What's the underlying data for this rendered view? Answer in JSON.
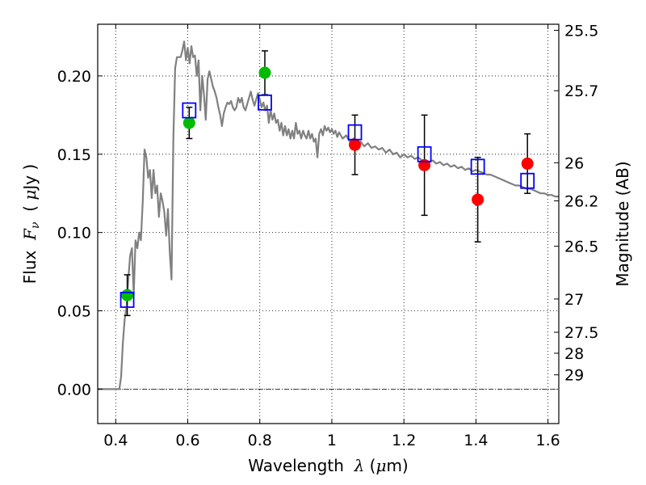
{
  "chart_data": {
    "type": "scatter",
    "xlabel": {
      "prefix": "Wavelength  ",
      "symbol": "λ",
      "suffix": " (",
      "unit_symbol": "μ",
      "unit_rest": "m)"
    },
    "ylabel": {
      "prefix": "Flux  ",
      "symbol": "F",
      "subscript": "ν",
      "mid": "  ( ",
      "unit_symbol": "μ",
      "unit_rest": "Jy )"
    },
    "y2label": "Magnitude (AB)",
    "xlim": [
      0.35,
      1.63
    ],
    "ylim": [
      -0.022,
      0.233
    ],
    "grid": true,
    "x_ticks": [
      {
        "value": 0.4,
        "label": "0.4"
      },
      {
        "value": 0.6,
        "label": "0.6"
      },
      {
        "value": 0.8,
        "label": "0.8"
      },
      {
        "value": 1.0,
        "label": "1"
      },
      {
        "value": 1.2,
        "label": "1.2"
      },
      {
        "value": 1.4,
        "label": "1.4"
      },
      {
        "value": 1.6,
        "label": "1.6"
      }
    ],
    "y_ticks": [
      {
        "value": 0.0,
        "label": "0.00"
      },
      {
        "value": 0.05,
        "label": "0.05"
      },
      {
        "value": 0.1,
        "label": "0.10"
      },
      {
        "value": 0.15,
        "label": "0.15"
      },
      {
        "value": 0.2,
        "label": "0.20"
      }
    ],
    "mag_ticks": [
      {
        "mag": 25.5,
        "label": "25.5"
      },
      {
        "mag": 25.7,
        "label": "25.7"
      },
      {
        "mag": 26.0,
        "label": "26"
      },
      {
        "mag": 26.2,
        "label": "26.2"
      },
      {
        "mag": 26.5,
        "label": "26.5"
      },
      {
        "mag": 27.0,
        "label": "27"
      },
      {
        "mag": 27.5,
        "label": "27.5"
      },
      {
        "mag": 28.0,
        "label": "28"
      },
      {
        "mag": 29.0,
        "label": "29"
      }
    ],
    "model_sed": {
      "color": "#808080",
      "points": [
        [
          0.35,
          0.0
        ],
        [
          0.41,
          0.0
        ],
        [
          0.415,
          0.008
        ],
        [
          0.42,
          0.03
        ],
        [
          0.425,
          0.045
        ],
        [
          0.43,
          0.052
        ],
        [
          0.435,
          0.07
        ],
        [
          0.44,
          0.085
        ],
        [
          0.445,
          0.09
        ],
        [
          0.45,
          0.06
        ],
        [
          0.455,
          0.095
        ],
        [
          0.46,
          0.09
        ],
        [
          0.465,
          0.1
        ],
        [
          0.47,
          0.095
        ],
        [
          0.475,
          0.12
        ],
        [
          0.48,
          0.153
        ],
        [
          0.485,
          0.148
        ],
        [
          0.49,
          0.135
        ],
        [
          0.495,
          0.14
        ],
        [
          0.5,
          0.122
        ],
        [
          0.505,
          0.14
        ],
        [
          0.51,
          0.125
        ],
        [
          0.515,
          0.13
        ],
        [
          0.52,
          0.11
        ],
        [
          0.525,
          0.125
        ],
        [
          0.53,
          0.12
        ],
        [
          0.535,
          0.113
        ],
        [
          0.54,
          0.098
        ],
        [
          0.545,
          0.115
        ],
        [
          0.55,
          0.088
        ],
        [
          0.555,
          0.07
        ],
        [
          0.56,
          0.16
        ],
        [
          0.565,
          0.205
        ],
        [
          0.57,
          0.212
        ],
        [
          0.575,
          0.212
        ],
        [
          0.58,
          0.212
        ],
        [
          0.585,
          0.216
        ],
        [
          0.59,
          0.222
        ],
        [
          0.595,
          0.21
        ],
        [
          0.6,
          0.218
        ],
        [
          0.605,
          0.208
        ],
        [
          0.61,
          0.219
        ],
        [
          0.615,
          0.212
        ],
        [
          0.62,
          0.213
        ],
        [
          0.625,
          0.2
        ],
        [
          0.63,
          0.21
        ],
        [
          0.635,
          0.178
        ],
        [
          0.64,
          0.2
        ],
        [
          0.645,
          0.188
        ],
        [
          0.65,
          0.172
        ],
        [
          0.655,
          0.198
        ],
        [
          0.66,
          0.203
        ],
        [
          0.665,
          0.198
        ],
        [
          0.67,
          0.193
        ],
        [
          0.675,
          0.19
        ],
        [
          0.68,
          0.186
        ],
        [
          0.685,
          0.18
        ],
        [
          0.69,
          0.175
        ],
        [
          0.695,
          0.168
        ],
        [
          0.7,
          0.176
        ],
        [
          0.705,
          0.18
        ],
        [
          0.71,
          0.183
        ],
        [
          0.715,
          0.182
        ],
        [
          0.72,
          0.184
        ],
        [
          0.725,
          0.18
        ],
        [
          0.73,
          0.178
        ],
        [
          0.735,
          0.18
        ],
        [
          0.74,
          0.186
        ],
        [
          0.745,
          0.183
        ],
        [
          0.75,
          0.186
        ],
        [
          0.755,
          0.18
        ],
        [
          0.76,
          0.178
        ],
        [
          0.765,
          0.182
        ],
        [
          0.77,
          0.186
        ],
        [
          0.775,
          0.19
        ],
        [
          0.78,
          0.185
        ],
        [
          0.785,
          0.181
        ],
        [
          0.79,
          0.185
        ],
        [
          0.795,
          0.189
        ],
        [
          0.8,
          0.185
        ],
        [
          0.805,
          0.18
        ],
        [
          0.81,
          0.183
        ],
        [
          0.815,
          0.178
        ],
        [
          0.82,
          0.181
        ],
        [
          0.825,
          0.17
        ],
        [
          0.83,
          0.178
        ],
        [
          0.835,
          0.172
        ],
        [
          0.84,
          0.176
        ],
        [
          0.845,
          0.17
        ],
        [
          0.85,
          0.172
        ],
        [
          0.855,
          0.165
        ],
        [
          0.86,
          0.17
        ],
        [
          0.865,
          0.162
        ],
        [
          0.87,
          0.168
        ],
        [
          0.875,
          0.162
        ],
        [
          0.88,
          0.166
        ],
        [
          0.885,
          0.16
        ],
        [
          0.89,
          0.165
        ],
        [
          0.895,
          0.16
        ],
        [
          0.9,
          0.17
        ],
        [
          0.905,
          0.163
        ],
        [
          0.91,
          0.165
        ],
        [
          0.915,
          0.16
        ],
        [
          0.92,
          0.165
        ],
        [
          0.925,
          0.162
        ],
        [
          0.93,
          0.16
        ],
        [
          0.935,
          0.165
        ],
        [
          0.94,
          0.16
        ],
        [
          0.945,
          0.163
        ],
        [
          0.95,
          0.158
        ],
        [
          0.955,
          0.16
        ],
        [
          0.96,
          0.148
        ],
        [
          0.965,
          0.163
        ],
        [
          0.97,
          0.166
        ],
        [
          0.975,
          0.162
        ],
        [
          0.98,
          0.168
        ],
        [
          0.985,
          0.165
        ],
        [
          0.99,
          0.167
        ],
        [
          0.995,
          0.164
        ],
        [
          1.0,
          0.166
        ],
        [
          1.005,
          0.163
        ],
        [
          1.01,
          0.165
        ],
        [
          1.015,
          0.161
        ],
        [
          1.02,
          0.164
        ],
        [
          1.025,
          0.162
        ],
        [
          1.03,
          0.16
        ],
        [
          1.04,
          0.162
        ],
        [
          1.05,
          0.158
        ],
        [
          1.06,
          0.16
        ],
        [
          1.07,
          0.156
        ],
        [
          1.08,
          0.158
        ],
        [
          1.09,
          0.155
        ],
        [
          1.1,
          0.157
        ],
        [
          1.11,
          0.154
        ],
        [
          1.12,
          0.155
        ],
        [
          1.13,
          0.153
        ],
        [
          1.14,
          0.154
        ],
        [
          1.15,
          0.151
        ],
        [
          1.16,
          0.153
        ],
        [
          1.17,
          0.15
        ],
        [
          1.18,
          0.151
        ],
        [
          1.19,
          0.148
        ],
        [
          1.2,
          0.15
        ],
        [
          1.21,
          0.148
        ],
        [
          1.22,
          0.149
        ],
        [
          1.23,
          0.147
        ],
        [
          1.24,
          0.148
        ],
        [
          1.25,
          0.146
        ],
        [
          1.26,
          0.146
        ],
        [
          1.27,
          0.145
        ],
        [
          1.28,
          0.146
        ],
        [
          1.29,
          0.144
        ],
        [
          1.3,
          0.145
        ],
        [
          1.31,
          0.143
        ],
        [
          1.32,
          0.144
        ],
        [
          1.33,
          0.142
        ],
        [
          1.34,
          0.143
        ],
        [
          1.35,
          0.141
        ],
        [
          1.36,
          0.142
        ],
        [
          1.37,
          0.14
        ],
        [
          1.38,
          0.141
        ],
        [
          1.39,
          0.139
        ],
        [
          1.4,
          0.14
        ],
        [
          1.41,
          0.139
        ],
        [
          1.42,
          0.138
        ],
        [
          1.43,
          0.137
        ],
        [
          1.44,
          0.137
        ],
        [
          1.45,
          0.136
        ],
        [
          1.46,
          0.135
        ],
        [
          1.47,
          0.134
        ],
        [
          1.48,
          0.133
        ],
        [
          1.49,
          0.132
        ],
        [
          1.5,
          0.131
        ],
        [
          1.51,
          0.13
        ],
        [
          1.52,
          0.13
        ],
        [
          1.53,
          0.129
        ],
        [
          1.54,
          0.128
        ],
        [
          1.55,
          0.128
        ],
        [
          1.56,
          0.127
        ],
        [
          1.57,
          0.126
        ],
        [
          1.58,
          0.125
        ],
        [
          1.59,
          0.125
        ],
        [
          1.6,
          0.124
        ],
        [
          1.61,
          0.124
        ],
        [
          1.62,
          0.123
        ],
        [
          1.63,
          0.123
        ]
      ]
    },
    "series": [
      {
        "marker": "circle",
        "color": "#00bb00",
        "points": [
          {
            "x": 0.432,
            "y": 0.06,
            "err": 0.013
          },
          {
            "x": 0.604,
            "y": 0.17,
            "err": 0.01
          },
          {
            "x": 0.814,
            "y": 0.202,
            "err": 0.014
          }
        ]
      },
      {
        "marker": "circle",
        "color": "#ff0000",
        "points": [
          {
            "x": 1.064,
            "y": 0.156,
            "err": 0.019
          },
          {
            "x": 1.257,
            "y": 0.143,
            "err": 0.032
          },
          {
            "x": 1.405,
            "y": 0.121,
            "err": 0.027
          },
          {
            "x": 1.543,
            "y": 0.144,
            "err": 0.019
          }
        ]
      },
      {
        "marker": "open-square",
        "color": "#0000ff",
        "points": [
          {
            "x": 0.432,
            "y": 0.057
          },
          {
            "x": 0.604,
            "y": 0.178
          },
          {
            "x": 0.814,
            "y": 0.183
          },
          {
            "x": 1.064,
            "y": 0.164
          },
          {
            "x": 1.257,
            "y": 0.15
          },
          {
            "x": 1.405,
            "y": 0.142
          },
          {
            "x": 1.543,
            "y": 0.133
          }
        ]
      }
    ],
    "zero_line": {
      "value": 0.0,
      "color": "#000000",
      "style": "dash-dot"
    }
  }
}
